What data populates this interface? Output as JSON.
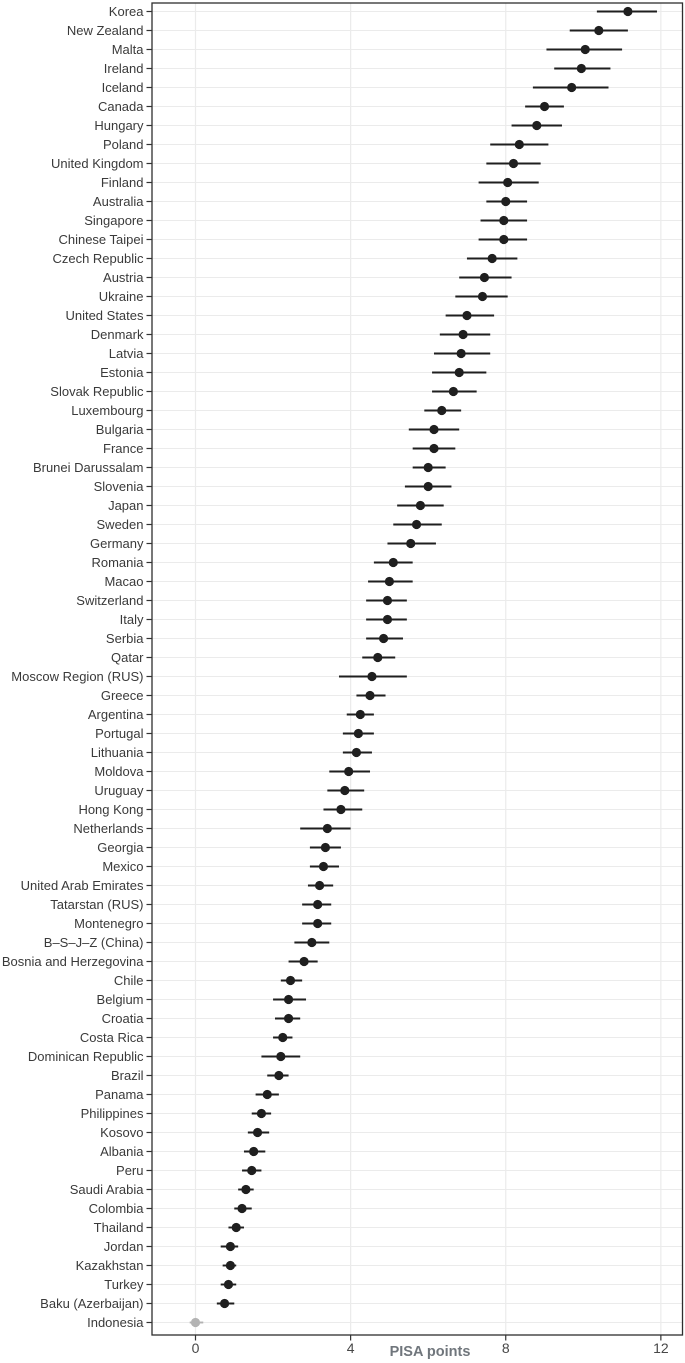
{
  "chart_data": {
    "type": "scatter",
    "variant": "dot-whisker-horizontal",
    "title": "",
    "xlabel": "PISA points",
    "ylabel": "",
    "xlim": [
      -1.12,
      12.56
    ],
    "x_ticks": [
      0,
      4,
      8,
      12
    ],
    "grid": "on",
    "legend": "none",
    "colors": {
      "point": "#1f1f1f",
      "muted_point": "#b3b3b3",
      "gridline": "#ebebeb",
      "panel_border": "#2e2e2e",
      "tick_mark": "#333333",
      "background": "#ffffff"
    },
    "rows": [
      {
        "label": "Korea",
        "value": 11.15,
        "lo": 10.35,
        "hi": 11.9
      },
      {
        "label": "New Zealand",
        "value": 10.4,
        "lo": 9.65,
        "hi": 11.15
      },
      {
        "label": "Malta",
        "value": 10.05,
        "lo": 9.05,
        "hi": 11.0
      },
      {
        "label": "Ireland",
        "value": 9.95,
        "lo": 9.25,
        "hi": 10.7
      },
      {
        "label": "Iceland",
        "value": 9.7,
        "lo": 8.7,
        "hi": 10.65
      },
      {
        "label": "Canada",
        "value": 9.0,
        "lo": 8.5,
        "hi": 9.5
      },
      {
        "label": "Hungary",
        "value": 8.8,
        "lo": 8.15,
        "hi": 9.45
      },
      {
        "label": "Poland",
        "value": 8.35,
        "lo": 7.6,
        "hi": 9.1
      },
      {
        "label": "United Kingdom",
        "value": 8.2,
        "lo": 7.5,
        "hi": 8.9
      },
      {
        "label": "Finland",
        "value": 8.05,
        "lo": 7.3,
        "hi": 8.85
      },
      {
        "label": "Australia",
        "value": 8.0,
        "lo": 7.5,
        "hi": 8.55
      },
      {
        "label": "Singapore",
        "value": 7.95,
        "lo": 7.35,
        "hi": 8.55
      },
      {
        "label": "Chinese Taipei",
        "value": 7.95,
        "lo": 7.3,
        "hi": 8.55
      },
      {
        "label": "Czech Republic",
        "value": 7.65,
        "lo": 7.0,
        "hi": 8.3
      },
      {
        "label": "Austria",
        "value": 7.45,
        "lo": 6.8,
        "hi": 8.15
      },
      {
        "label": "Ukraine",
        "value": 7.4,
        "lo": 6.7,
        "hi": 8.05
      },
      {
        "label": "United States",
        "value": 7.0,
        "lo": 6.45,
        "hi": 7.7
      },
      {
        "label": "Denmark",
        "value": 6.9,
        "lo": 6.3,
        "hi": 7.6
      },
      {
        "label": "Latvia",
        "value": 6.85,
        "lo": 6.15,
        "hi": 7.6
      },
      {
        "label": "Estonia",
        "value": 6.8,
        "lo": 6.1,
        "hi": 7.5
      },
      {
        "label": "Slovak Republic",
        "value": 6.65,
        "lo": 6.1,
        "hi": 7.25
      },
      {
        "label": "Luxembourg",
        "value": 6.35,
        "lo": 5.9,
        "hi": 6.85
      },
      {
        "label": "Bulgaria",
        "value": 6.15,
        "lo": 5.5,
        "hi": 6.8
      },
      {
        "label": "France",
        "value": 6.15,
        "lo": 5.6,
        "hi": 6.7
      },
      {
        "label": "Brunei Darussalam",
        "value": 6.0,
        "lo": 5.6,
        "hi": 6.45
      },
      {
        "label": "Slovenia",
        "value": 6.0,
        "lo": 5.4,
        "hi": 6.6
      },
      {
        "label": "Japan",
        "value": 5.8,
        "lo": 5.2,
        "hi": 6.4
      },
      {
        "label": "Sweden",
        "value": 5.7,
        "lo": 5.1,
        "hi": 6.35
      },
      {
        "label": "Germany",
        "value": 5.55,
        "lo": 4.95,
        "hi": 6.2
      },
      {
        "label": "Romania",
        "value": 5.1,
        "lo": 4.6,
        "hi": 5.6
      },
      {
        "label": "Macao",
        "value": 5.0,
        "lo": 4.45,
        "hi": 5.6
      },
      {
        "label": "Switzerland",
        "value": 4.95,
        "lo": 4.4,
        "hi": 5.45
      },
      {
        "label": "Italy",
        "value": 4.95,
        "lo": 4.4,
        "hi": 5.45
      },
      {
        "label": "Serbia",
        "value": 4.85,
        "lo": 4.4,
        "hi": 5.35
      },
      {
        "label": "Qatar",
        "value": 4.7,
        "lo": 4.3,
        "hi": 5.15
      },
      {
        "label": "Moscow Region (RUS)",
        "value": 4.55,
        "lo": 3.7,
        "hi": 5.45
      },
      {
        "label": "Greece",
        "value": 4.5,
        "lo": 4.15,
        "hi": 4.9
      },
      {
        "label": "Argentina",
        "value": 4.25,
        "lo": 3.9,
        "hi": 4.6
      },
      {
        "label": "Portugal",
        "value": 4.2,
        "lo": 3.8,
        "hi": 4.6
      },
      {
        "label": "Lithuania",
        "value": 4.15,
        "lo": 3.8,
        "hi": 4.55
      },
      {
        "label": "Moldova",
        "value": 3.95,
        "lo": 3.45,
        "hi": 4.5
      },
      {
        "label": "Uruguay",
        "value": 3.85,
        "lo": 3.4,
        "hi": 4.35
      },
      {
        "label": "Hong Kong",
        "value": 3.75,
        "lo": 3.3,
        "hi": 4.3
      },
      {
        "label": "Netherlands",
        "value": 3.4,
        "lo": 2.7,
        "hi": 4.0
      },
      {
        "label": "Georgia",
        "value": 3.35,
        "lo": 2.95,
        "hi": 3.75
      },
      {
        "label": "Mexico",
        "value": 3.3,
        "lo": 2.95,
        "hi": 3.7
      },
      {
        "label": "United Arab Emirates",
        "value": 3.2,
        "lo": 2.9,
        "hi": 3.55
      },
      {
        "label": "Tatarstan (RUS)",
        "value": 3.15,
        "lo": 2.75,
        "hi": 3.5
      },
      {
        "label": "Montenegro",
        "value": 3.15,
        "lo": 2.75,
        "hi": 3.5
      },
      {
        "label": "B–S–J–Z (China)",
        "value": 3.0,
        "lo": 2.55,
        "hi": 3.45
      },
      {
        "label": "Bosnia and Herzegovina",
        "value": 2.8,
        "lo": 2.4,
        "hi": 3.15
      },
      {
        "label": "Chile",
        "value": 2.45,
        "lo": 2.2,
        "hi": 2.75
      },
      {
        "label": "Belgium",
        "value": 2.4,
        "lo": 2.0,
        "hi": 2.85
      },
      {
        "label": "Croatia",
        "value": 2.4,
        "lo": 2.05,
        "hi": 2.7
      },
      {
        "label": "Costa Rica",
        "value": 2.25,
        "lo": 2.0,
        "hi": 2.5
      },
      {
        "label": "Dominican Republic",
        "value": 2.2,
        "lo": 1.7,
        "hi": 2.7
      },
      {
        "label": "Brazil",
        "value": 2.15,
        "lo": 1.85,
        "hi": 2.4
      },
      {
        "label": "Panama",
        "value": 1.85,
        "lo": 1.55,
        "hi": 2.15
      },
      {
        "label": "Philippines",
        "value": 1.7,
        "lo": 1.45,
        "hi": 1.95
      },
      {
        "label": "Kosovo",
        "value": 1.6,
        "lo": 1.35,
        "hi": 1.9
      },
      {
        "label": "Albania",
        "value": 1.5,
        "lo": 1.25,
        "hi": 1.8
      },
      {
        "label": "Peru",
        "value": 1.45,
        "lo": 1.2,
        "hi": 1.7
      },
      {
        "label": "Saudi Arabia",
        "value": 1.3,
        "lo": 1.1,
        "hi": 1.5
      },
      {
        "label": "Colombia",
        "value": 1.2,
        "lo": 1.0,
        "hi": 1.45
      },
      {
        "label": "Thailand",
        "value": 1.05,
        "lo": 0.85,
        "hi": 1.25
      },
      {
        "label": "Jordan",
        "value": 0.9,
        "lo": 0.65,
        "hi": 1.1
      },
      {
        "label": "Kazakhstan",
        "value": 0.9,
        "lo": 0.7,
        "hi": 1.05
      },
      {
        "label": "Turkey",
        "value": 0.85,
        "lo": 0.65,
        "hi": 1.05
      },
      {
        "label": "Baku (Azerbaijan)",
        "value": 0.75,
        "lo": 0.55,
        "hi": 1.0
      },
      {
        "label": "Indonesia",
        "value": 0.0,
        "lo": -0.15,
        "hi": 0.2,
        "muted": true
      }
    ]
  }
}
